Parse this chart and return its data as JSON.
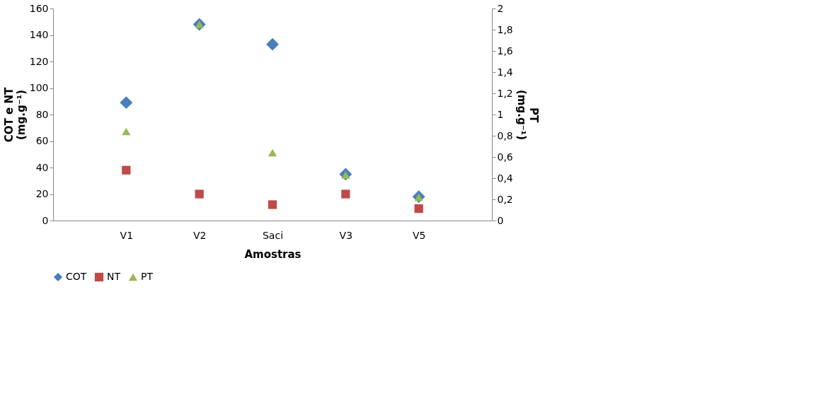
{
  "chart_data": {
    "type": "scatter",
    "xlabel": "Amostras",
    "ylabel": "COT e NT\n(mg.g⁻¹)",
    "y2label": "PT\n(mg.g⁻¹)",
    "categories": [
      "V1",
      "V2",
      "Saci",
      "V3",
      "V5"
    ],
    "series": [
      {
        "name": "COT",
        "color": "#4a7ebb",
        "marker": "diamond",
        "values": [
          89,
          148,
          133,
          35,
          18
        ]
      },
      {
        "name": "NT",
        "color": "#be4b48",
        "marker": "square",
        "values": [
          38,
          20,
          12,
          20,
          9
        ]
      },
      {
        "name": "PT",
        "color": "#98b954",
        "marker": "triangle",
        "axis": "y2",
        "values": [
          0.84,
          1.85,
          0.64,
          0.43,
          0.22
        ]
      }
    ],
    "ylim": [
      0,
      160
    ],
    "yticks": [
      0,
      20,
      40,
      60,
      80,
      100,
      120,
      140,
      160
    ],
    "y2lim": [
      0,
      2
    ],
    "y2ticks": [
      0,
      {
        "value": 0.2,
        "label": "0,2"
      },
      {
        "value": 0.4,
        "label": "0,4"
      },
      {
        "value": 0.6,
        "label": "0,6"
      },
      {
        "value": 0.8,
        "label": "0,8"
      },
      1,
      {
        "value": 1.2,
        "label": "1,2"
      },
      {
        "value": 1.4,
        "label": "1,4"
      },
      {
        "value": 1.6,
        "label": "1,6"
      },
      {
        "value": 1.8,
        "label": "1,8"
      },
      2
    ],
    "grid": false,
    "legend": "bottom"
  }
}
